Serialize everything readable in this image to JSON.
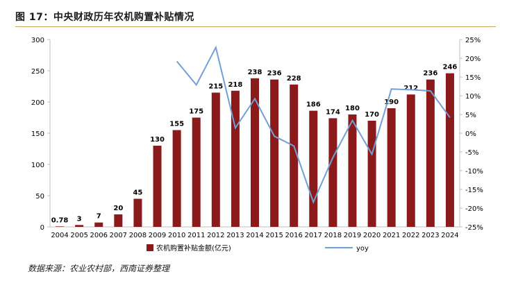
{
  "figure": {
    "title": "图 17：中央财政历年农机购置补贴情况",
    "source": "数据来源：农业农村部，西南证券整理"
  },
  "colors": {
    "bar": "#8b1a1a",
    "line": "#6fa0d8",
    "axis": "#bfbfbf",
    "text": "#000000"
  },
  "chart_data": {
    "type": "bar",
    "categories": [
      "2004",
      "2005",
      "2006",
      "2007",
      "2008",
      "2009",
      "2010",
      "2011",
      "2012",
      "2013",
      "2014",
      "2015",
      "2016",
      "2017",
      "2018",
      "2019",
      "2020",
      "2021",
      "2022",
      "2023",
      "2024"
    ],
    "series": [
      {
        "name": "农机购置补贴金额(亿元)",
        "type": "bar",
        "axis": "left",
        "values": [
          0.78,
          3,
          7,
          20,
          45,
          130,
          155,
          175,
          215,
          218,
          238,
          236,
          228,
          186,
          174,
          180,
          170,
          190,
          212,
          236,
          246
        ],
        "labels": [
          "0.78",
          "3",
          "7",
          "20",
          "45",
          "130",
          "155",
          "175",
          "215",
          "218",
          "238",
          "236",
          "228",
          "186",
          "174",
          "180",
          "170",
          "190",
          "212",
          "236",
          "246"
        ]
      },
      {
        "name": "yoy",
        "type": "line",
        "axis": "right",
        "values": [
          null,
          null,
          null,
          null,
          null,
          null,
          19.2,
          12.9,
          22.9,
          1.4,
          9.2,
          -0.8,
          -3.4,
          -18.4,
          -6.5,
          3.4,
          -5.6,
          11.8,
          11.6,
          11.3,
          4.2
        ]
      }
    ],
    "y_left": {
      "min": 0,
      "max": 300,
      "step": 50,
      "ticks": [
        "0",
        "50",
        "100",
        "150",
        "200",
        "250",
        "300"
      ]
    },
    "y_right": {
      "min": -25,
      "max": 25,
      "step": 5,
      "ticks": [
        "-25%",
        "-20%",
        "-15%",
        "-10%",
        "-5%",
        "0%",
        "5%",
        "10%",
        "15%",
        "20%",
        "25%"
      ]
    },
    "grid": false,
    "legend_position": "bottom"
  }
}
